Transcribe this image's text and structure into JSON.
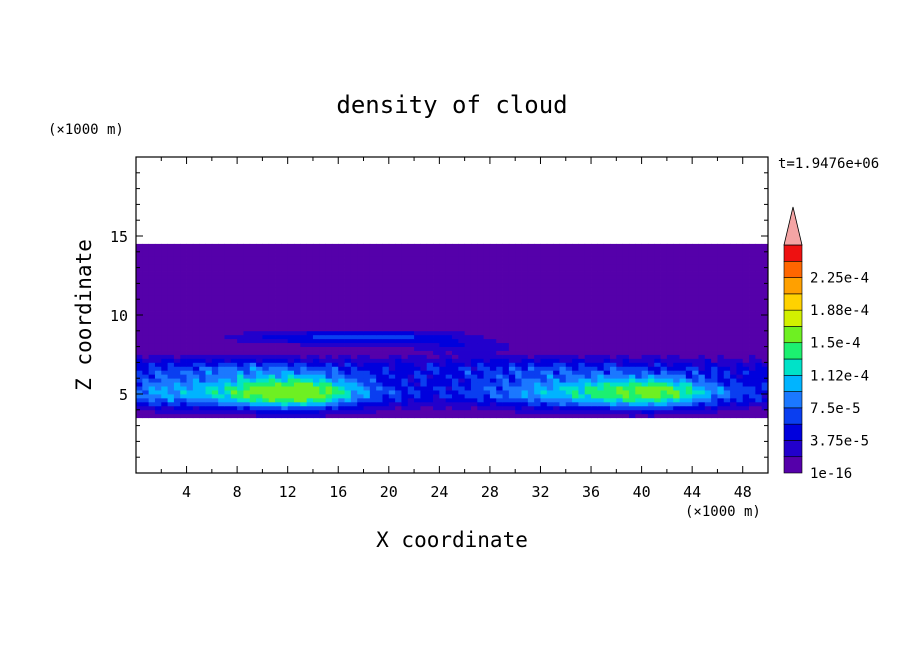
{
  "chart_data": {
    "type": "heatmap",
    "title": "density of cloud",
    "xlabel": "X coordinate",
    "ylabel": "Z coordinate",
    "x_unit": "(×1000 m)",
    "y_unit": "(×1000 m)",
    "time_label": "t=1.9476e+06",
    "xlim": [
      0,
      50
    ],
    "ylim": [
      0,
      20
    ],
    "x_ticks": [
      4,
      8,
      12,
      16,
      20,
      24,
      28,
      32,
      36,
      40,
      44,
      48
    ],
    "y_ticks": [
      5,
      10,
      15
    ],
    "colorbar": {
      "levels": [
        1e-16,
        1.875e-05,
        3.75e-05,
        5.625e-05,
        7.5e-05,
        9.375e-05,
        0.0001125,
        0.00013125,
        0.00015,
        0.00016875,
        0.0001875,
        0.00020625,
        0.000225,
        0.00024375
      ],
      "colors": [
        "#5500aa",
        "#2200cc",
        "#0000dd",
        "#0a3ef0",
        "#1b78ff",
        "#00b4ff",
        "#00e2c8",
        "#1cf070",
        "#6ef022",
        "#d2f000",
        "#ffd200",
        "#ffa000",
        "#ff6600",
        "#ee1111"
      ],
      "tick_labels": [
        "1e-16",
        "3.75e-5",
        "7.5e-5",
        "1.12e-4",
        "1.5e-4",
        "1.88e-4",
        "2.25e-4"
      ],
      "extend_color": "#f4a4a4"
    },
    "cloud_layer_km": {
      "base": 3.5,
      "top": 14.5
    }
  }
}
